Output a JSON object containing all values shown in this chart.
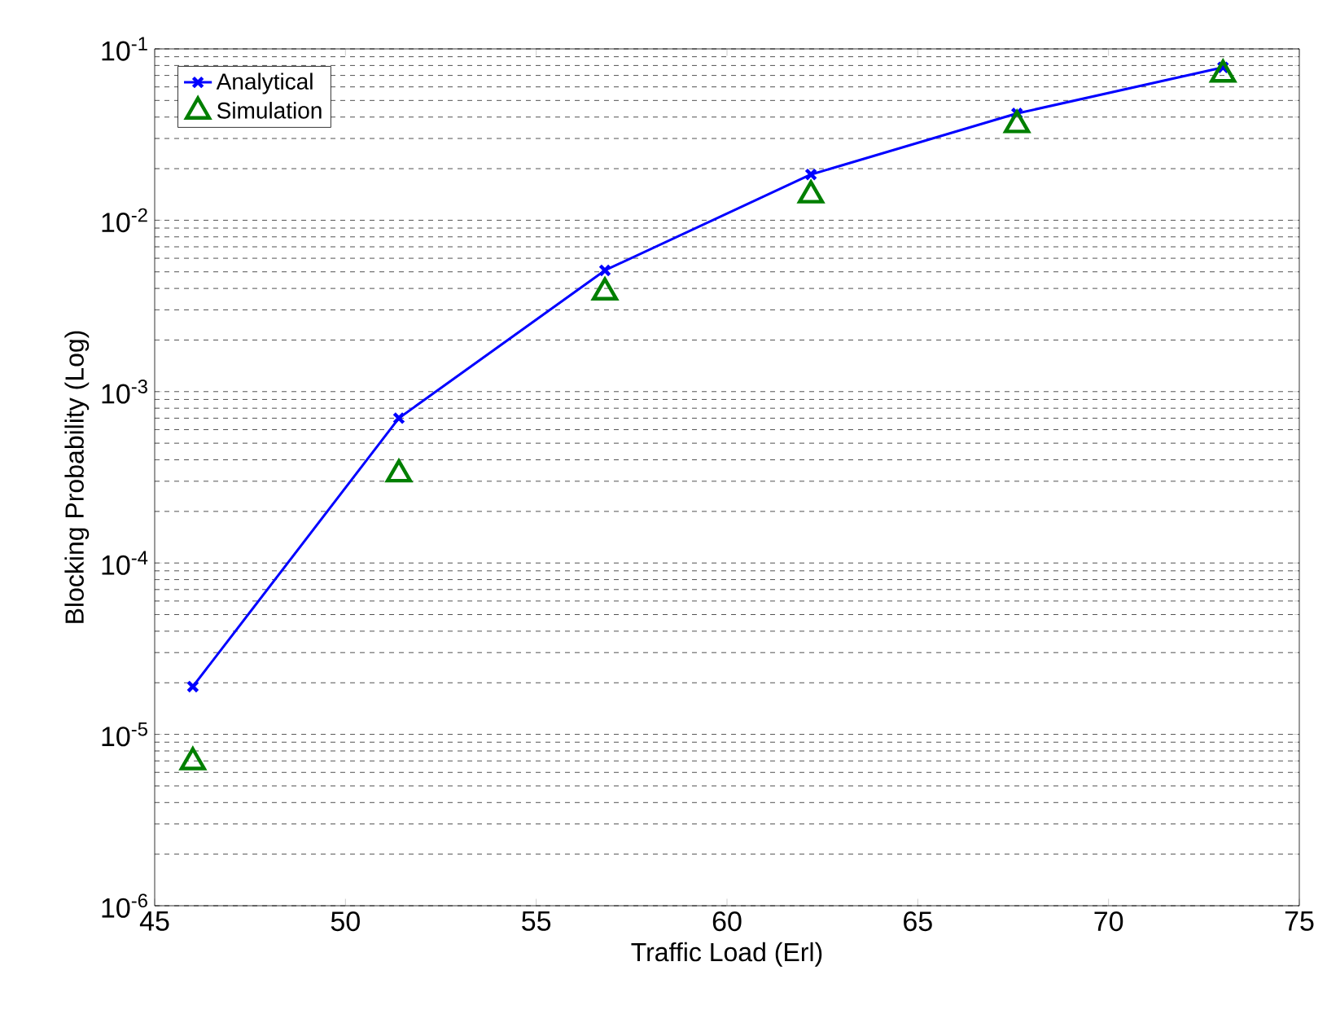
{
  "chart_data": {
    "type": "line",
    "xlabel": "Traffic Load (Erl)",
    "ylabel": "Blocking Probability (Log)",
    "log": "y",
    "x": [
      46,
      51.4,
      56.8,
      62.2,
      67.6,
      73
    ],
    "series": [
      {
        "name": "Analytical",
        "color": "#0000ff",
        "values": [
          1.9e-05,
          0.0007,
          0.0051,
          0.0185,
          0.042,
          0.078
        ],
        "marker": "cross",
        "line_style": "solid"
      },
      {
        "name": "Simulation",
        "type": "scatter",
        "color": "#007f00",
        "values": [
          6.9e-06,
          0.00033,
          0.0038,
          0.014,
          0.036,
          0.071
        ],
        "marker": "triangle"
      }
    ],
    "xlim": [
      45,
      75
    ],
    "xticks": [
      45,
      50,
      55,
      60,
      65,
      70,
      75
    ],
    "ylim": [
      1e-06,
      0.1
    ],
    "yticks": [
      {
        "value": 1e-06,
        "label": "10$^{-6}$"
      },
      {
        "value": 1e-05,
        "label": "10$^{-5}$"
      },
      {
        "value": 0.0001,
        "label": "10$^{-4}$"
      },
      {
        "value": 0.001,
        "label": "10$^{-3}$"
      },
      {
        "value": 0.01,
        "label": "10$^{-2}$"
      },
      {
        "value": 0.1,
        "label": "10$^{-1}$"
      }
    ],
    "grid": "y",
    "legend": "top left"
  }
}
